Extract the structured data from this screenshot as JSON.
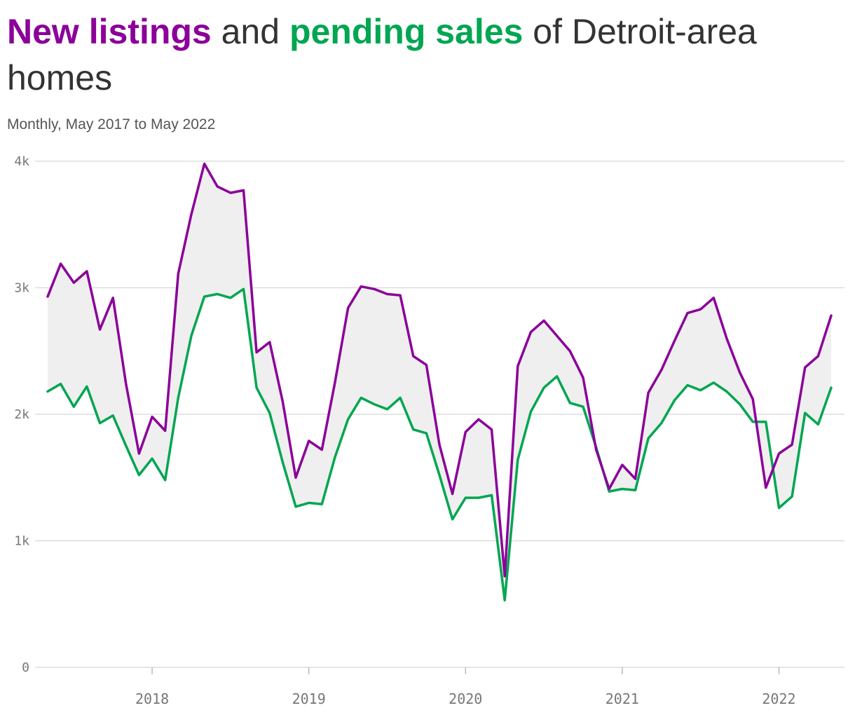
{
  "header": {
    "title_part1": "New listings",
    "title_part2": " and ",
    "title_part3": "pending sales",
    "title_part4": " of Detroit-area homes",
    "subtitle": "Monthly, May 2017 to May 2022"
  },
  "colors": {
    "new_listings": "#8b0099",
    "pending_sales": "#00a651",
    "band_fill": "#efefef",
    "grid": "#dddddd"
  },
  "chart_data": {
    "type": "line",
    "x_start": "2017-05",
    "x_end": "2022-05",
    "x": [
      "2017-05",
      "2017-06",
      "2017-07",
      "2017-08",
      "2017-09",
      "2017-10",
      "2017-11",
      "2017-12",
      "2018-01",
      "2018-02",
      "2018-03",
      "2018-04",
      "2018-05",
      "2018-06",
      "2018-07",
      "2018-08",
      "2018-09",
      "2018-10",
      "2018-11",
      "2018-12",
      "2019-01",
      "2019-02",
      "2019-03",
      "2019-04",
      "2019-05",
      "2019-06",
      "2019-07",
      "2019-08",
      "2019-09",
      "2019-10",
      "2019-11",
      "2019-12",
      "2020-01",
      "2020-02",
      "2020-03",
      "2020-04",
      "2020-05",
      "2020-06",
      "2020-07",
      "2020-08",
      "2020-09",
      "2020-10",
      "2020-11",
      "2020-12",
      "2021-01",
      "2021-02",
      "2021-03",
      "2021-04",
      "2021-05",
      "2021-06",
      "2021-07",
      "2021-08",
      "2021-09",
      "2021-10",
      "2021-11",
      "2021-12",
      "2022-01",
      "2022-02",
      "2022-03",
      "2022-04",
      "2022-05"
    ],
    "series": [
      {
        "name": "New listings",
        "values": [
          2930,
          3190,
          3040,
          3130,
          2670,
          2920,
          2240,
          1690,
          1980,
          1870,
          3110,
          3580,
          3980,
          3800,
          3750,
          3770,
          2490,
          2570,
          2100,
          1500,
          1790,
          1720,
          2250,
          2840,
          3010,
          2990,
          2950,
          2940,
          2460,
          2390,
          1760,
          1370,
          1860,
          1960,
          1880,
          720,
          2380,
          2650,
          2740,
          2620,
          2500,
          2290,
          1720,
          1410,
          1600,
          1490,
          2170,
          2350,
          2580,
          2800,
          2830,
          2920,
          2600,
          2330,
          2120,
          1420,
          1690,
          1760,
          2370,
          2460,
          2780
        ]
      },
      {
        "name": "pending sales",
        "values": [
          2180,
          2240,
          2060,
          2220,
          1930,
          1990,
          1750,
          1520,
          1650,
          1480,
          2130,
          2620,
          2930,
          2950,
          2920,
          2990,
          2210,
          2010,
          1620,
          1270,
          1300,
          1290,
          1660,
          1960,
          2130,
          2080,
          2040,
          2130,
          1880,
          1850,
          1520,
          1170,
          1340,
          1340,
          1360,
          530,
          1640,
          2020,
          2210,
          2300,
          2090,
          2060,
          1740,
          1390,
          1410,
          1400,
          1810,
          1930,
          2110,
          2230,
          2190,
          2250,
          2180,
          2080,
          1940,
          1940,
          1260,
          1350,
          2010,
          1920,
          2210
        ]
      }
    ],
    "y_ticks": [
      0,
      1000,
      2000,
      3000,
      4000
    ],
    "y_tick_labels": [
      "0",
      "1k",
      "2k",
      "3k",
      "4k"
    ],
    "x_tick_labels": [
      "2018",
      "2019",
      "2020",
      "2021",
      "2022"
    ],
    "ylim": [
      0,
      4000
    ],
    "grid": true,
    "legend": "none"
  }
}
